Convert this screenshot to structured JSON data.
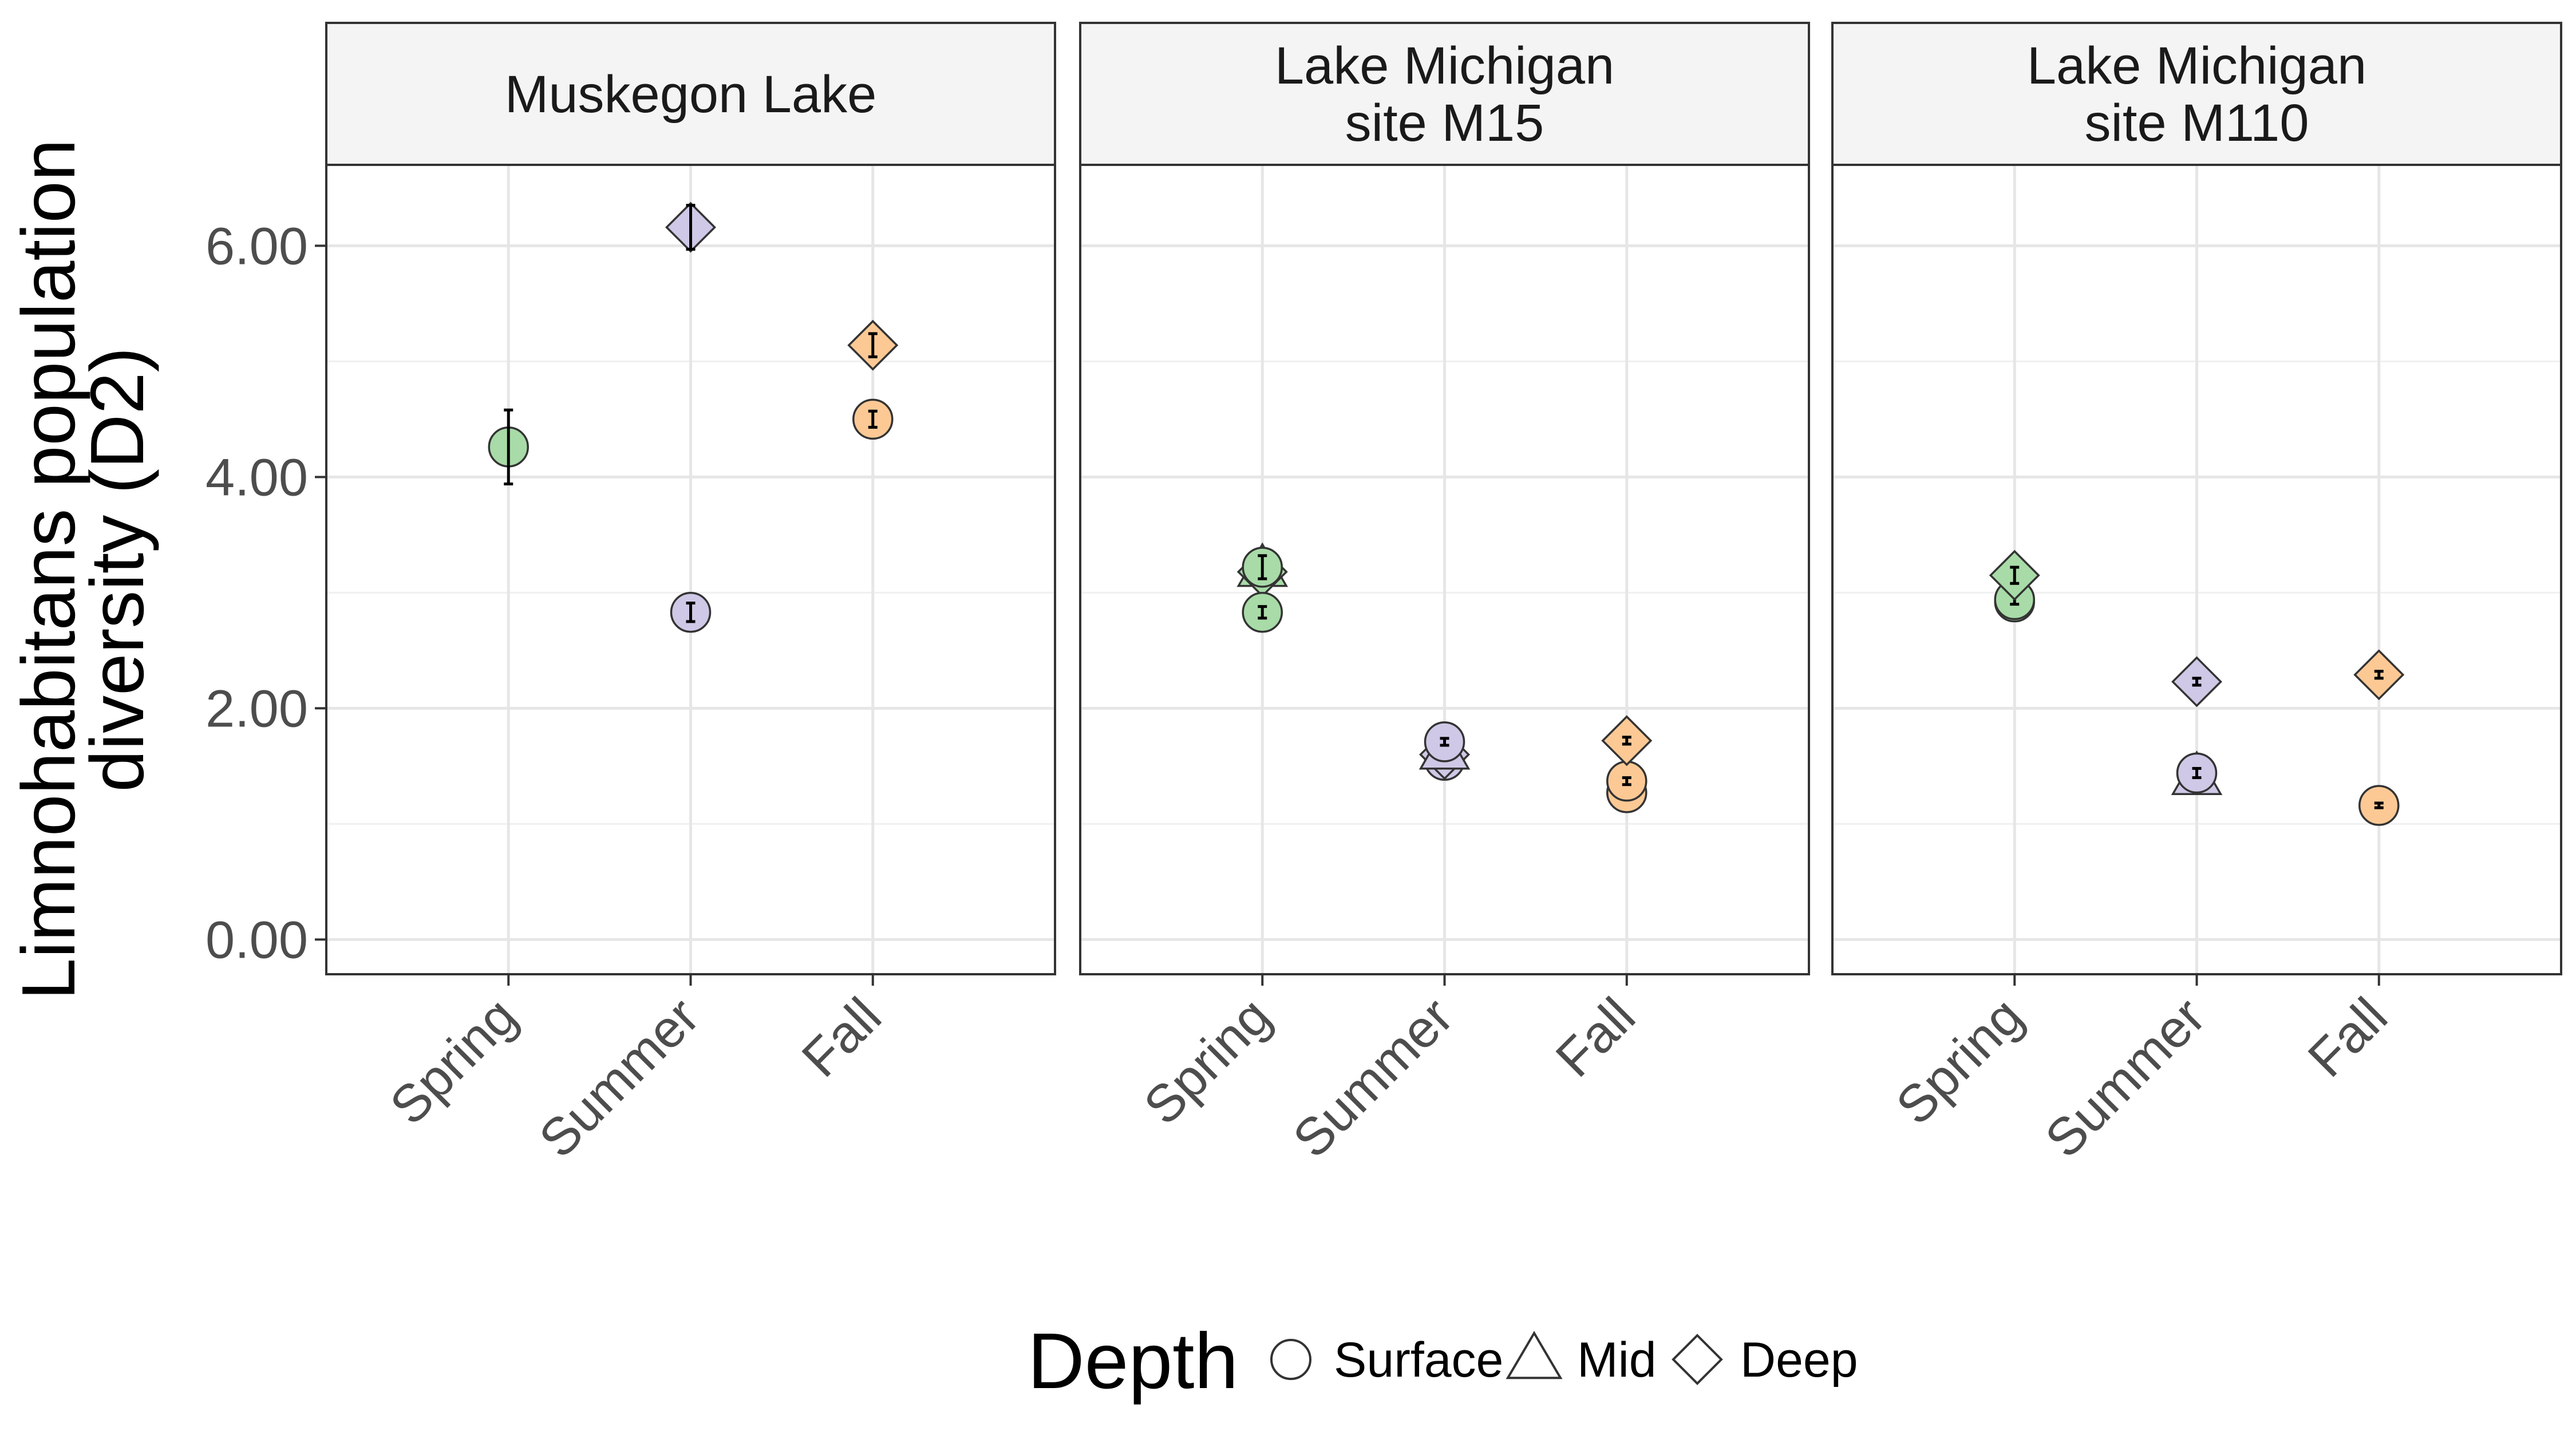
{
  "chart_data": {
    "type": "scatter",
    "ylabel": "Limnohabitans population\ndiversity (D2)",
    "ylim": [
      -0.3,
      6.7
    ],
    "yticks": [
      0,
      2,
      4,
      6
    ],
    "ytick_labels": [
      "0.00",
      "2.00",
      "4.00",
      "6.00"
    ],
    "categories": [
      "Spring",
      "Summer",
      "Fall"
    ],
    "grid": true,
    "facets": [
      "Muskegon Lake",
      "Lake Michigan\nsite M15",
      "Lake Michigan\nsite M110"
    ],
    "season_colors": {
      "Spring": "#a8dba8",
      "Summer": "#cfc8e6",
      "Fall": "#fcc995"
    },
    "legend": {
      "title": "Depth",
      "position": "bottom",
      "items": [
        {
          "label": "Surface",
          "shape": "circle"
        },
        {
          "label": "Mid",
          "shape": "triangle"
        },
        {
          "label": "Deep",
          "shape": "diamond"
        }
      ]
    },
    "points": [
      {
        "facet": 0,
        "season": "Spring",
        "depth": "Surface",
        "y": 4.26,
        "err": 0.32
      },
      {
        "facet": 0,
        "season": "Summer",
        "depth": "Deep",
        "y": 6.16,
        "err": 0.19
      },
      {
        "facet": 0,
        "season": "Summer",
        "depth": "Surface",
        "y": 2.83,
        "err": 0.08
      },
      {
        "facet": 0,
        "season": "Fall",
        "depth": "Deep",
        "y": 5.14,
        "err": 0.1
      },
      {
        "facet": 0,
        "season": "Fall",
        "depth": "Surface",
        "y": 4.5,
        "err": 0.07
      },
      {
        "facet": 1,
        "season": "Spring",
        "depth": "Mid",
        "y": 3.2,
        "err": 0.1
      },
      {
        "facet": 1,
        "season": "Spring",
        "depth": "Deep",
        "y": 3.18,
        "err": 0.1
      },
      {
        "facet": 1,
        "season": "Spring",
        "depth": "Surface",
        "y": 3.22,
        "err": 0.1
      },
      {
        "facet": 1,
        "season": "Spring",
        "depth": "Surface",
        "y": 2.83,
        "err": 0.05
      },
      {
        "facet": 1,
        "season": "Summer",
        "depth": "Surface",
        "y": 1.55,
        "err": 0.04
      },
      {
        "facet": 1,
        "season": "Summer",
        "depth": "Deep",
        "y": 1.6,
        "err": 0.03
      },
      {
        "facet": 1,
        "season": "Summer",
        "depth": "Mid",
        "y": 1.62,
        "err": 0.03
      },
      {
        "facet": 1,
        "season": "Summer",
        "depth": "Surface",
        "y": 1.71,
        "err": 0.03
      },
      {
        "facet": 1,
        "season": "Fall",
        "depth": "Surface",
        "y": 1.27,
        "err": 0.03
      },
      {
        "facet": 1,
        "season": "Fall",
        "depth": "Surface",
        "y": 1.37,
        "err": 0.03
      },
      {
        "facet": 1,
        "season": "Fall",
        "depth": "Deep",
        "y": 1.72,
        "err": 0.03
      },
      {
        "facet": 2,
        "season": "Spring",
        "depth": "Surface",
        "y": 2.92,
        "err": 0.04
      },
      {
        "facet": 2,
        "season": "Spring",
        "depth": "Surface",
        "y": 2.94,
        "err": 0.04
      },
      {
        "facet": 2,
        "season": "Spring",
        "depth": "Deep",
        "y": 3.15,
        "err": 0.07
      },
      {
        "facet": 2,
        "season": "Summer",
        "depth": "Mid",
        "y": 1.4,
        "err": 0.03
      },
      {
        "facet": 2,
        "season": "Summer",
        "depth": "Surface",
        "y": 1.44,
        "err": 0.04
      },
      {
        "facet": 2,
        "season": "Summer",
        "depth": "Deep",
        "y": 2.23,
        "err": 0.03
      },
      {
        "facet": 2,
        "season": "Fall",
        "depth": "Surface",
        "y": 1.16,
        "err": 0.02
      },
      {
        "facet": 2,
        "season": "Fall",
        "depth": "Deep",
        "y": 2.29,
        "err": 0.03
      }
    ]
  }
}
